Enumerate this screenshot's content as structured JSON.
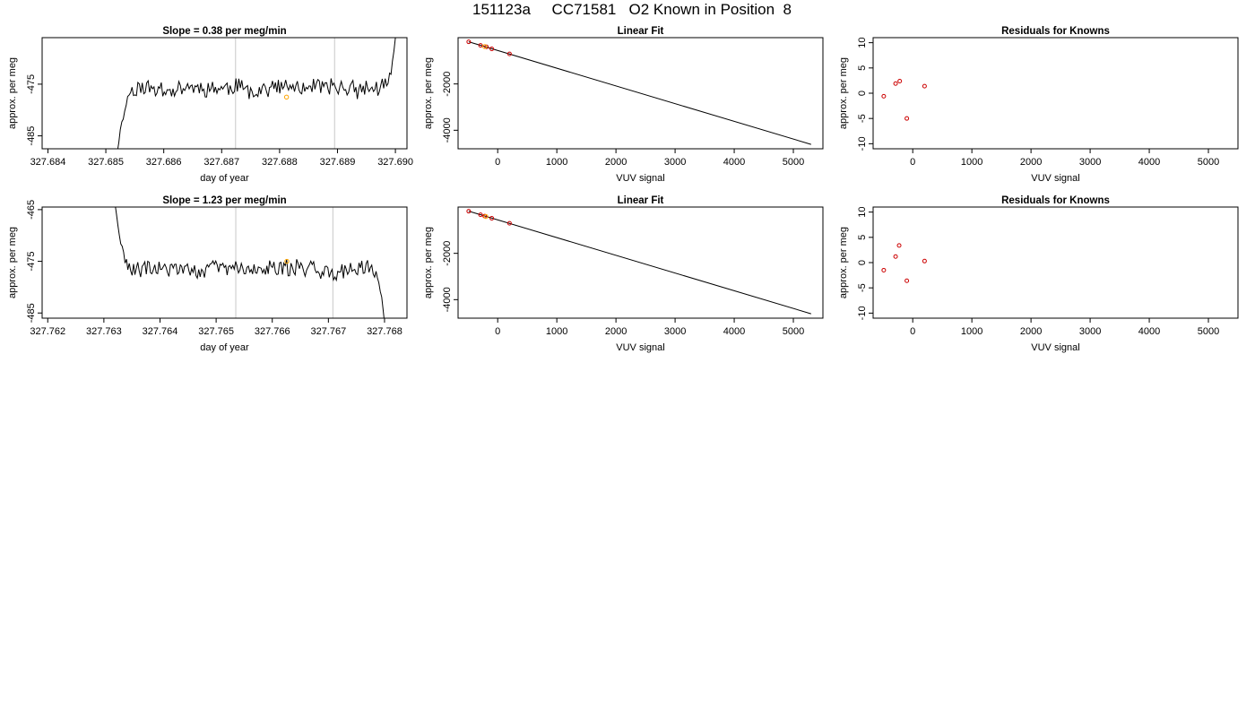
{
  "main_title": "151123a     CC71581   O2 Known in Position  8",
  "colors": {
    "trace": "#000000",
    "marker": "#ffa500",
    "known_point": "#cc0000",
    "vline": "#c8c8c8",
    "fit_line": "#000000"
  },
  "chart_data": [
    {
      "id": "r1-timeseries",
      "type": "line",
      "title": "Slope =  0.38  per meg/min",
      "xlabel": "day of year",
      "ylabel": "approx. per meg",
      "xlim": [
        327.6839,
        327.6902
      ],
      "ylim": [
        -487.5,
        -466
      ],
      "xticks": [
        "327.684",
        "327.685",
        "327.686",
        "327.687",
        "327.688",
        "327.689",
        "327.690"
      ],
      "yticks": [
        "-475",
        "-485"
      ],
      "vlines": [
        327.68724,
        327.68895
      ],
      "highlight": {
        "x": 327.68812,
        "y": -477.5
      },
      "series": {
        "x_start": 327.6852,
        "x_end": 327.69,
        "seed": 11,
        "level": -475.8,
        "noise": 1.5,
        "start_from": -488,
        "end_to": -466
      }
    },
    {
      "id": "r1-fit",
      "type": "scatter",
      "title": "Linear Fit",
      "xlabel": "VUV signal",
      "ylabel": "approx. per meg",
      "xlim": [
        -670,
        5500
      ],
      "ylim": [
        -4800,
        0
      ],
      "xticks": [
        0,
        1000,
        2000,
        3000,
        4000,
        5000
      ],
      "yticks": [
        -2000,
        -4000
      ],
      "fit_line": [
        [
          -490,
          -180
        ],
        [
          5300,
          -4610
        ]
      ],
      "points": [
        [
          -490,
          -181
        ],
        [
          -290,
          -334
        ],
        [
          -190,
          -398
        ],
        [
          -100,
          -486
        ],
        [
          200,
          -703
        ]
      ],
      "highlight": [
        [
          -220,
          -385
        ]
      ]
    },
    {
      "id": "r1-resid",
      "type": "scatter",
      "title": "Residuals for Knowns",
      "xlabel": "VUV signal",
      "ylabel": "approx. per meg",
      "xlim": [
        -670,
        5500
      ],
      "ylim": [
        -11,
        11
      ],
      "xticks": [
        0,
        1000,
        2000,
        3000,
        4000,
        5000
      ],
      "yticks": [
        10,
        5,
        0,
        -5,
        -10
      ],
      "points": [
        [
          -490,
          -0.6
        ],
        [
          -290,
          1.9
        ],
        [
          -220,
          2.4
        ],
        [
          -100,
          -5.0
        ],
        [
          200,
          1.4
        ]
      ]
    },
    {
      "id": "r2-timeseries",
      "type": "line",
      "title": "Slope =  1.23  per meg/min",
      "xlabel": "day of year",
      "ylabel": "approx. per meg",
      "xlim": [
        327.7619,
        327.7684
      ],
      "ylim": [
        -486,
        -464.5
      ],
      "xticks": [
        "327.762",
        "327.763",
        "327.764",
        "327.765",
        "327.766",
        "327.767",
        "327.768"
      ],
      "yticks": [
        "-465",
        "-475",
        "-485"
      ],
      "vlines": [
        327.76535,
        327.76708
      ],
      "highlight": {
        "x": 327.76626,
        "y": -475
      },
      "series": {
        "x_start": 327.7632,
        "x_end": 327.768,
        "seed": 29,
        "level": -476.5,
        "noise": 1.5,
        "start_from": -464,
        "end_to": -487
      }
    },
    {
      "id": "r2-fit",
      "type": "scatter",
      "title": "Linear Fit",
      "xlabel": "VUV signal",
      "ylabel": "approx. per meg",
      "xlim": [
        -670,
        5500
      ],
      "ylim": [
        -4800,
        0
      ],
      "xticks": [
        0,
        1000,
        2000,
        3000,
        4000,
        5000
      ],
      "yticks": [
        -2000,
        -4000
      ],
      "fit_line": [
        [
          -490,
          -180
        ],
        [
          5300,
          -4610
        ]
      ],
      "points": [
        [
          -490,
          -181
        ],
        [
          -290,
          -334
        ],
        [
          -220,
          -392
        ],
        [
          -100,
          -486
        ],
        [
          200,
          -703
        ]
      ],
      "highlight": [
        [
          -200,
          -410
        ]
      ]
    },
    {
      "id": "r2-resid",
      "type": "scatter",
      "title": "Residuals for Knowns",
      "xlabel": "VUV signal",
      "ylabel": "approx. per meg",
      "xlim": [
        -670,
        5500
      ],
      "ylim": [
        -11,
        11
      ],
      "xticks": [
        0,
        1000,
        2000,
        3000,
        4000,
        5000
      ],
      "yticks": [
        10,
        5,
        0,
        -5,
        -10
      ],
      "points": [
        [
          -490,
          -1.5
        ],
        [
          -290,
          1.2
        ],
        [
          -230,
          3.4
        ],
        [
          -100,
          -3.6
        ],
        [
          200,
          0.3
        ]
      ]
    }
  ]
}
